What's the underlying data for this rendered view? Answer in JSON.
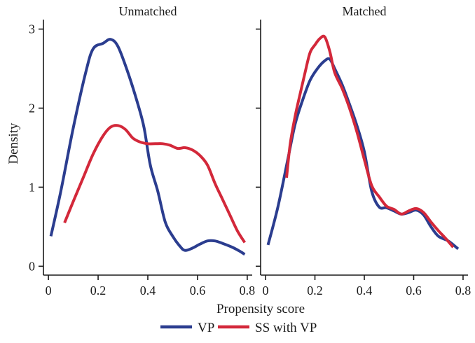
{
  "chart_data": {
    "type": "line",
    "xlabel": "Propensity score",
    "ylabel": "Density",
    "xlim": [
      -0.02,
      0.82
    ],
    "ylim": [
      -0.05,
      3.12
    ],
    "xticks": [
      0,
      0.2,
      0.4,
      0.6,
      0.8
    ],
    "xtick_labels": [
      "0",
      "0.2",
      "0.4",
      "0.6",
      "0.8"
    ],
    "yticks": [
      0,
      1,
      2,
      3
    ],
    "ytick_labels": [
      "0",
      "1",
      "2",
      "3"
    ],
    "legend": {
      "position": "bottom-center",
      "entries": [
        {
          "name": "VP",
          "color": "#2b3d8f"
        },
        {
          "name": "SS with VP",
          "color": "#d3283a"
        }
      ]
    },
    "panels": [
      {
        "title": "Unmatched",
        "series": [
          {
            "name": "VP",
            "color": "#2b3d8f",
            "x": [
              0.01,
              0.05,
              0.1,
              0.15,
              0.18,
              0.22,
              0.25,
              0.28,
              0.32,
              0.36,
              0.385,
              0.41,
              0.44,
              0.47,
              0.5,
              0.53,
              0.55,
              0.58,
              0.61,
              0.64,
              0.67,
              0.7,
              0.74,
              0.77,
              0.79
            ],
            "y": [
              0.38,
              0.95,
              1.75,
              2.45,
              2.75,
              2.82,
              2.87,
              2.78,
              2.45,
              2.05,
              1.75,
              1.28,
              0.95,
              0.56,
              0.38,
              0.25,
              0.2,
              0.23,
              0.28,
              0.32,
              0.32,
              0.29,
              0.24,
              0.19,
              0.15
            ]
          },
          {
            "name": "SS with VP",
            "color": "#d3283a",
            "x": [
              0.065,
              0.1,
              0.14,
              0.18,
              0.22,
              0.25,
              0.28,
              0.31,
              0.34,
              0.37,
              0.4,
              0.43,
              0.46,
              0.49,
              0.52,
              0.55,
              0.58,
              0.61,
              0.64,
              0.67,
              0.7,
              0.73,
              0.76,
              0.79
            ],
            "y": [
              0.55,
              0.82,
              1.12,
              1.42,
              1.65,
              1.76,
              1.78,
              1.73,
              1.62,
              1.57,
              1.55,
              1.55,
              1.55,
              1.53,
              1.49,
              1.5,
              1.47,
              1.4,
              1.28,
              1.05,
              0.85,
              0.65,
              0.45,
              0.3
            ]
          }
        ]
      },
      {
        "title": "Matched",
        "series": [
          {
            "name": "VP",
            "color": "#2b3d8f",
            "x": [
              0.01,
              0.05,
              0.09,
              0.12,
              0.15,
              0.18,
              0.21,
              0.24,
              0.26,
              0.28,
              0.31,
              0.34,
              0.37,
              0.4,
              0.43,
              0.46,
              0.49,
              0.52,
              0.55,
              0.58,
              0.61,
              0.64,
              0.67,
              0.7,
              0.74,
              0.78
            ],
            "y": [
              0.27,
              0.75,
              1.35,
              1.8,
              2.1,
              2.35,
              2.5,
              2.6,
              2.62,
              2.5,
              2.3,
              2.05,
              1.78,
              1.45,
              0.95,
              0.75,
              0.74,
              0.7,
              0.66,
              0.68,
              0.71,
              0.65,
              0.5,
              0.38,
              0.32,
              0.22
            ]
          },
          {
            "name": "SS with VP",
            "color": "#d3283a",
            "x": [
              0.085,
              0.1,
              0.12,
              0.14,
              0.16,
              0.18,
              0.2,
              0.22,
              0.24,
              0.26,
              0.28,
              0.31,
              0.34,
              0.37,
              0.4,
              0.43,
              0.46,
              0.49,
              0.52,
              0.55,
              0.58,
              0.61,
              0.64,
              0.67,
              0.7,
              0.73,
              0.76
            ],
            "y": [
              1.12,
              1.55,
              1.9,
              2.18,
              2.45,
              2.7,
              2.8,
              2.88,
              2.9,
              2.72,
              2.45,
              2.25,
              2.0,
              1.7,
              1.35,
              1.02,
              0.88,
              0.76,
              0.72,
              0.66,
              0.7,
              0.73,
              0.68,
              0.56,
              0.45,
              0.35,
              0.24
            ]
          }
        ]
      }
    ]
  }
}
